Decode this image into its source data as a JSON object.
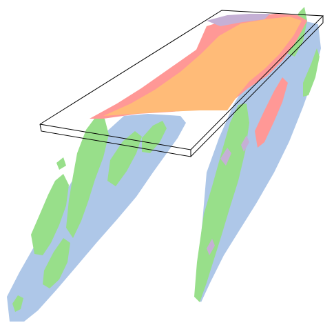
{
  "viewer": {
    "background": "#ffffff",
    "bbox_stroke": "#000000"
  },
  "palette": {
    "green": "#98df8a",
    "blue": "#aec7e8",
    "red": "#ff9896",
    "orange": "#ffbb78",
    "purple": "#c5b0d5"
  }
}
